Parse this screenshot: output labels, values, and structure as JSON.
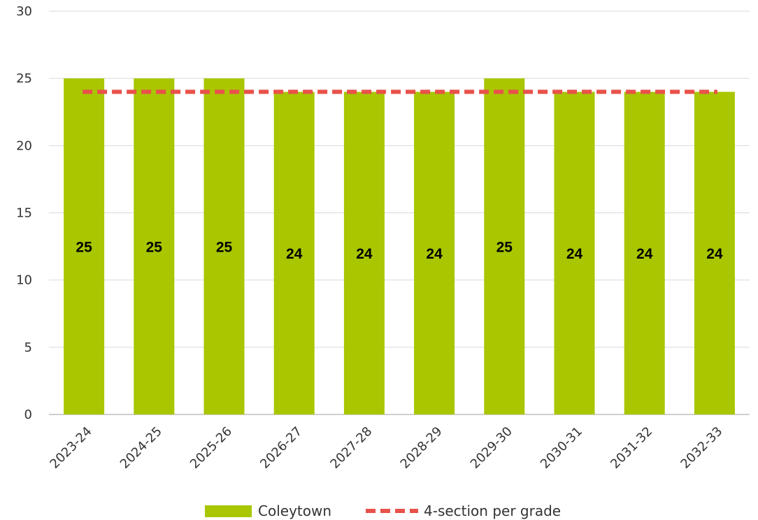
{
  "chart_data": {
    "type": "bar",
    "categories": [
      "2023-24",
      "2024-25",
      "2025-26",
      "2026-27",
      "2027-28",
      "2028-29",
      "2029-30",
      "2030-31",
      "2031-32",
      "2032-33"
    ],
    "series": [
      {
        "name": "Coleytown",
        "type": "bar",
        "values": [
          25,
          25,
          25,
          24,
          24,
          24,
          25,
          24,
          24,
          24
        ],
        "color": "#a9c600"
      },
      {
        "name": "4-section per grade",
        "type": "line",
        "style": "dashed",
        "values": [
          24,
          24,
          24,
          24,
          24,
          24,
          24,
          24,
          24,
          24
        ],
        "color": "#e8524a"
      }
    ],
    "data_labels": [
      "25",
      "25",
      "25",
      "24",
      "24",
      "24",
      "25",
      "24",
      "24",
      "24"
    ],
    "yticks": [
      "0",
      "5",
      "10",
      "15",
      "20",
      "25",
      "30"
    ],
    "ylim": [
      0,
      30
    ],
    "grid": "horizontal",
    "legend": "bottom",
    "title": "",
    "xlabel": "",
    "ylabel": ""
  }
}
